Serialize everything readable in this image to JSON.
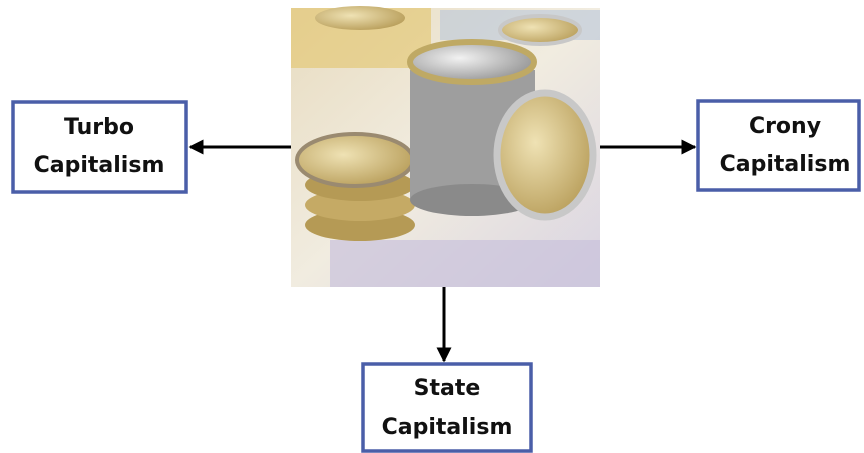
{
  "nodes": [
    {
      "lines": [
        "Turbo",
        "Capitalism"
      ]
    },
    {
      "lines": [
        "Crony",
        "Capitalism"
      ]
    },
    {
      "lines": [
        "State",
        "Capitalism"
      ]
    }
  ]
}
